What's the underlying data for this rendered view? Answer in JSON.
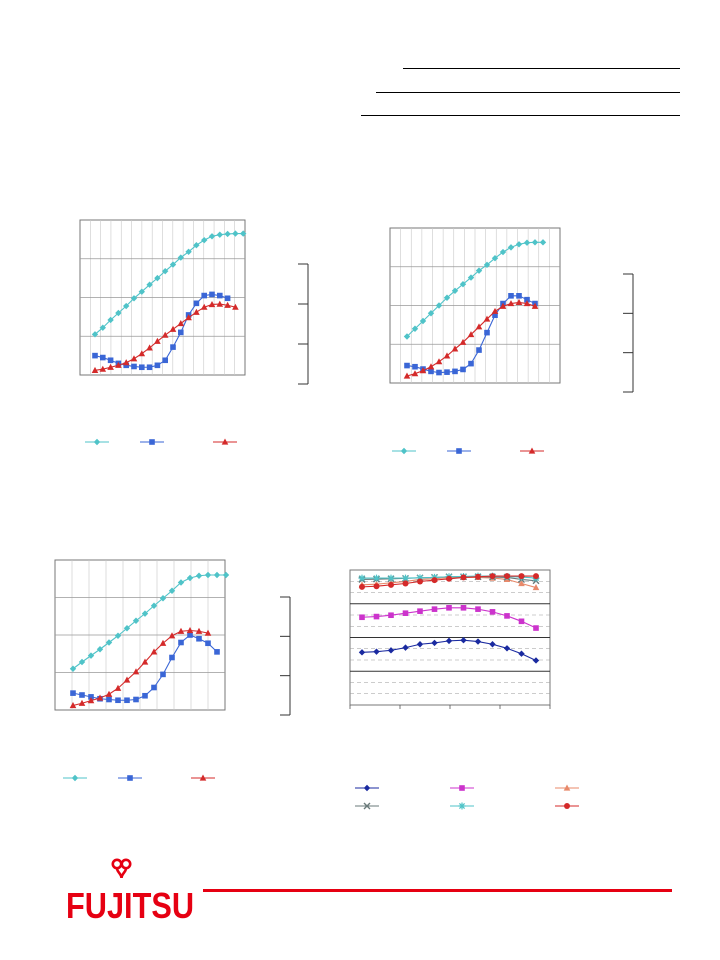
{
  "header_rules": [
    "rule-1",
    "rule-2",
    "rule-3"
  ],
  "brand": {
    "name": "FUJITSU",
    "color": "#e60012"
  },
  "colors": {
    "cyan": "#4fc3c8",
    "blue": "#3a66d6",
    "red": "#d42a2a",
    "navy": "#1a2aa0",
    "magenta": "#cc33cc",
    "orange": "#e8896a",
    "gray": "#6a7a7a"
  },
  "chart_data": [
    {
      "type": "line",
      "grid": true,
      "legend": "bottom",
      "ylim": [
        0,
        4
      ],
      "series": [
        {
          "marker": "diamond",
          "color": "#4fc3c8",
          "values": [
            1.05,
            1.22,
            1.42,
            1.6,
            1.78,
            1.98,
            2.15,
            2.33,
            2.5,
            2.68,
            2.85,
            3.03,
            3.18,
            3.35,
            3.48,
            3.58,
            3.62,
            3.64,
            3.65,
            3.65
          ]
        },
        {
          "marker": "square",
          "color": "#3a66d6",
          "values": [
            0.5,
            0.45,
            0.38,
            0.3,
            0.25,
            0.22,
            0.2,
            0.2,
            0.25,
            0.38,
            0.72,
            1.1,
            1.55,
            1.85,
            2.05,
            2.08,
            2.05,
            1.98
          ]
        },
        {
          "marker": "triangle",
          "color": "#d42a2a",
          "values": [
            0.12,
            0.15,
            0.2,
            0.25,
            0.32,
            0.42,
            0.55,
            0.7,
            0.87,
            1.03,
            1.18,
            1.33,
            1.48,
            1.62,
            1.75,
            1.82,
            1.83,
            1.8,
            1.75
          ]
        }
      ]
    },
    {
      "type": "line",
      "grid": true,
      "legend": "bottom",
      "ylim": [
        0,
        4
      ],
      "series": [
        {
          "marker": "diamond",
          "color": "#4fc3c8",
          "values": [
            1.2,
            1.4,
            1.6,
            1.8,
            2.0,
            2.2,
            2.38,
            2.55,
            2.72,
            2.9,
            3.05,
            3.22,
            3.38,
            3.5,
            3.58,
            3.62,
            3.63,
            3.63
          ]
        },
        {
          "marker": "square",
          "color": "#3a66d6",
          "values": [
            0.45,
            0.42,
            0.36,
            0.3,
            0.27,
            0.28,
            0.3,
            0.35,
            0.5,
            0.85,
            1.3,
            1.75,
            2.05,
            2.25,
            2.25,
            2.15,
            2.05
          ]
        },
        {
          "marker": "triangle",
          "color": "#d42a2a",
          "values": [
            0.18,
            0.24,
            0.32,
            0.42,
            0.55,
            0.7,
            0.88,
            1.05,
            1.25,
            1.45,
            1.65,
            1.85,
            1.98,
            2.05,
            2.08,
            2.05,
            1.98
          ]
        }
      ]
    },
    {
      "type": "line",
      "grid": true,
      "legend": "bottom",
      "ylim": [
        0,
        4
      ],
      "series": [
        {
          "marker": "diamond",
          "color": "#4fc3c8",
          "values": [
            1.1,
            1.28,
            1.45,
            1.62,
            1.8,
            1.98,
            2.18,
            2.38,
            2.57,
            2.78,
            2.98,
            3.18,
            3.4,
            3.52,
            3.58,
            3.6,
            3.6,
            3.6
          ]
        },
        {
          "marker": "square",
          "color": "#3a66d6",
          "values": [
            0.45,
            0.4,
            0.35,
            0.3,
            0.28,
            0.26,
            0.26,
            0.28,
            0.38,
            0.6,
            0.95,
            1.4,
            1.8,
            2.0,
            1.9,
            1.78,
            1.55
          ]
        },
        {
          "marker": "triangle",
          "color": "#d42a2a",
          "values": [
            0.12,
            0.18,
            0.25,
            0.32,
            0.42,
            0.58,
            0.8,
            1.02,
            1.28,
            1.55,
            1.78,
            1.98,
            2.1,
            2.12,
            2.1,
            2.05
          ]
        }
      ]
    },
    {
      "type": "line",
      "grid": true,
      "legend": "bottom",
      "ylim": [
        0,
        10
      ],
      "series": [
        {
          "marker": "diamond",
          "color": "#1a2aa0",
          "values": [
            3.9,
            3.95,
            4.05,
            4.25,
            4.5,
            4.6,
            4.75,
            4.8,
            4.7,
            4.5,
            4.2,
            3.8,
            3.3
          ]
        },
        {
          "marker": "square",
          "color": "#cc33cc",
          "values": [
            6.5,
            6.55,
            6.65,
            6.8,
            6.95,
            7.1,
            7.2,
            7.2,
            7.1,
            6.9,
            6.6,
            6.2,
            5.7
          ]
        },
        {
          "marker": "triangle",
          "color": "#e8896a",
          "values": [
            8.9,
            8.95,
            9.05,
            9.15,
            9.3,
            9.35,
            9.45,
            9.45,
            9.45,
            9.4,
            9.3,
            9.0,
            8.7
          ]
        },
        {
          "marker": "x",
          "color": "#6a7a7a",
          "values": [
            9.3,
            9.32,
            9.35,
            9.38,
            9.42,
            9.45,
            9.5,
            9.5,
            9.5,
            9.48,
            9.45,
            9.3,
            9.2
          ]
        },
        {
          "marker": "asterisk",
          "color": "#4fc3c8",
          "values": [
            9.4,
            9.4,
            9.4,
            9.4,
            9.42,
            9.45,
            9.5,
            9.52,
            9.55,
            9.55,
            9.52,
            9.48,
            9.4
          ]
        },
        {
          "marker": "circle",
          "color": "#d42a2a",
          "values": [
            8.75,
            8.8,
            8.9,
            9.0,
            9.15,
            9.25,
            9.35,
            9.45,
            9.5,
            9.55,
            9.55,
            9.55,
            9.55
          ]
        }
      ]
    }
  ]
}
